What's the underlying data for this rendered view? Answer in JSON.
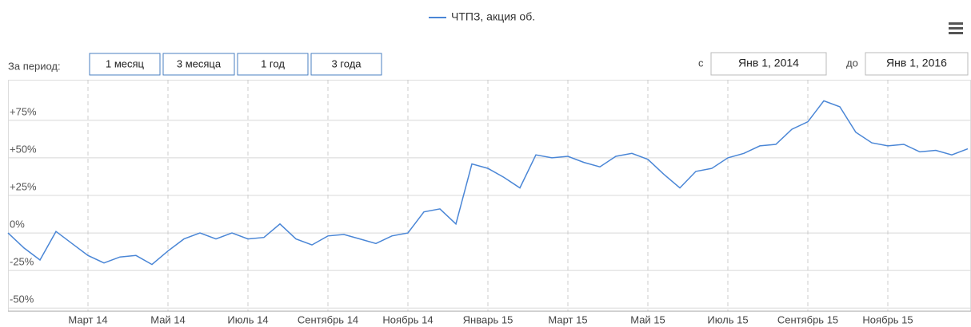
{
  "chart_data": {
    "type": "line",
    "series": [
      {
        "name": "ЧТПЗ, акция об.",
        "color": "#4a86d6",
        "values": [
          0,
          -10,
          -18,
          1,
          -7,
          -15,
          -20,
          -16,
          -15,
          -21,
          -12,
          -4,
          0,
          -4,
          0,
          -4,
          -3,
          6,
          -4,
          -8,
          -2,
          -1,
          -4,
          -7,
          -2,
          0,
          14,
          16,
          6,
          46,
          43,
          37,
          30,
          52,
          50,
          51,
          47,
          44,
          51,
          53,
          49,
          39,
          30,
          41,
          43,
          50,
          53,
          58,
          59,
          69,
          74,
          88,
          84,
          67,
          60,
          58,
          59,
          54,
          55,
          52,
          56
        ]
      }
    ],
    "xlim": [
      "2014-01",
      "2016-01"
    ],
    "xticks": [
      {
        "value": "2014-03",
        "label": "Март 14"
      },
      {
        "value": "2014-05",
        "label": "Май 14"
      },
      {
        "value": "2014-07",
        "label": "Июль 14"
      },
      {
        "value": "2014-09",
        "label": "Сентябрь 14"
      },
      {
        "value": "2014-11",
        "label": "Ноябрь 14"
      },
      {
        "value": "2015-01",
        "label": "Январь 15"
      },
      {
        "value": "2015-03",
        "label": "Март 15"
      },
      {
        "value": "2015-05",
        "label": "Май 15"
      },
      {
        "value": "2015-07",
        "label": "Июль 15"
      },
      {
        "value": "2015-09",
        "label": "Сентябрь 15"
      },
      {
        "value": "2015-11",
        "label": "Ноябрь 15"
      }
    ],
    "ylim": [
      -52,
      102
    ],
    "yticks": [
      {
        "value": -50,
        "label": "-50%"
      },
      {
        "value": -25,
        "label": "-25%"
      },
      {
        "value": 0,
        "label": "0%"
      },
      {
        "value": 25,
        "label": "+25%"
      },
      {
        "value": 50,
        "label": "+50%"
      },
      {
        "value": 75,
        "label": "+75%"
      }
    ],
    "grid": true
  },
  "range_selector": {
    "label": "За период:",
    "buttons": [
      "1 месяц",
      "3 месяца",
      "1 год",
      "3 года"
    ]
  },
  "date_range": {
    "from_label": "с",
    "from": "Янв 1, 2014",
    "to_label": "до",
    "to": "Янв 1, 2016"
  }
}
